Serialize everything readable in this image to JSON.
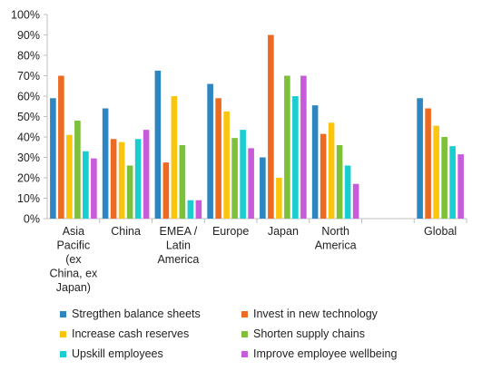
{
  "chart_data": {
    "type": "bar",
    "categories": [
      [
        "Asia",
        "Pacific",
        "(ex",
        "China, ex",
        "Japan)"
      ],
      [
        "China"
      ],
      [
        "EMEA /",
        "Latin",
        "America"
      ],
      [
        "Europe"
      ],
      [
        "Japan"
      ],
      [
        "North",
        "America"
      ],
      [
        ""
      ],
      [
        "Global"
      ]
    ],
    "ylim": [
      0,
      100
    ],
    "yticks": [
      "0%",
      "10%",
      "20%",
      "30%",
      "40%",
      "50%",
      "60%",
      "70%",
      "80%",
      "90%",
      "100%"
    ],
    "grid": false,
    "legend_position": "bottom",
    "series": [
      {
        "name": "Stregthen balance sheets",
        "color": "#2e86c1",
        "values": [
          59,
          54,
          72.5,
          66,
          30,
          55.5,
          null,
          59
        ]
      },
      {
        "name": "Invest in new technology",
        "color": "#ed6a23",
        "values": [
          70,
          39,
          27.5,
          59,
          90,
          41.5,
          null,
          54
        ]
      },
      {
        "name": "Increase cash reserves",
        "color": "#fbc50e",
        "values": [
          41,
          37.5,
          60,
          52.5,
          20,
          47,
          null,
          45.5
        ]
      },
      {
        "name": "Shorten supply chains",
        "color": "#7dc13a",
        "values": [
          48,
          26,
          36,
          39.5,
          70,
          36,
          null,
          40
        ]
      },
      {
        "name": "Upskill employees",
        "color": "#19cdd0",
        "values": [
          33,
          39,
          9,
          43.5,
          60,
          26,
          null,
          35.5
        ]
      },
      {
        "name": "Improve employee wellbeing",
        "color": "#c85bd9",
        "values": [
          29.5,
          43.5,
          9,
          34.5,
          70,
          17,
          null,
          31.5
        ]
      }
    ]
  }
}
